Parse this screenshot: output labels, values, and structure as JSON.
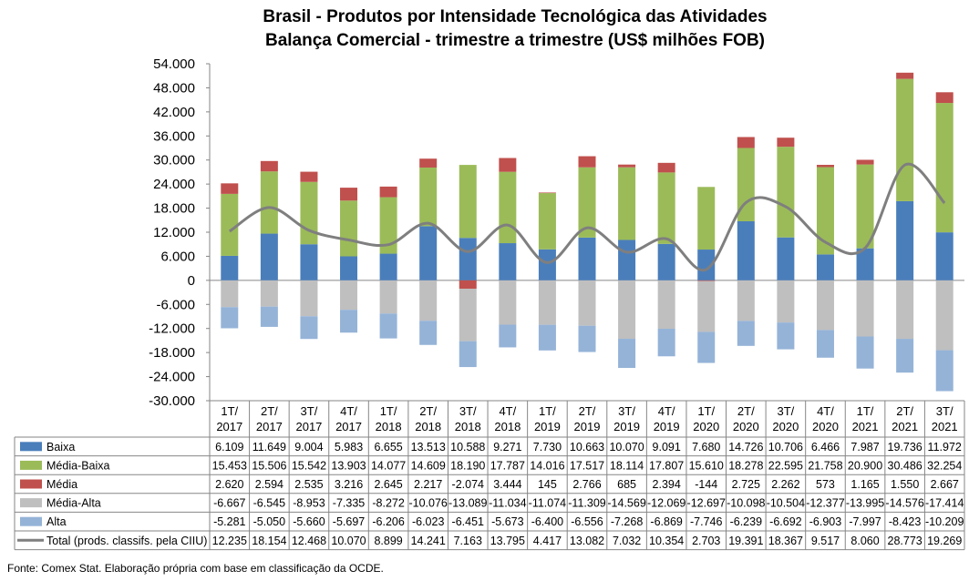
{
  "chart_data": {
    "type": "bar",
    "stacked": true,
    "title": [
      "Brasil - Produtos por Intensidade Tecnológica das Atividades",
      "Balança Comercial - trimestre a trimestre (US$ milhões FOB)"
    ],
    "categories": [
      "1T/\n2017",
      "2T/\n2017",
      "3T/\n2017",
      "4T/\n2017",
      "1T/\n2018",
      "2T/\n2018",
      "3T/\n2018",
      "4T/\n2018",
      "1T/\n2019",
      "2T/\n2019",
      "3T/\n2019",
      "4T/\n2019",
      "1T/\n2020",
      "2T/\n2020",
      "3T/\n2020",
      "4T/\n2020",
      "1T/\n2021",
      "2T/\n2021",
      "3T/\n2021"
    ],
    "ylim": [
      -30000,
      54000
    ],
    "yticks": [
      "54.000",
      "48.000",
      "42.000",
      "36.000",
      "30.000",
      "24.000",
      "18.000",
      "12.000",
      "6.000",
      "0",
      "-6.000",
      "-12.000",
      "-18.000",
      "-24.000",
      "-30.000"
    ],
    "ytick_values": [
      54000,
      48000,
      42000,
      36000,
      30000,
      24000,
      18000,
      12000,
      6000,
      0,
      -6000,
      -12000,
      -18000,
      -24000,
      -30000
    ],
    "series": [
      {
        "name": "Baixa",
        "kind": "bar",
        "color": "#4a7ebb",
        "values": [
          6109,
          11649,
          9004,
          5983,
          6655,
          13513,
          10588,
          9271,
          7730,
          10663,
          10070,
          9091,
          7680,
          14726,
          10706,
          6466,
          7987,
          19736,
          11972
        ],
        "labels": [
          "6.109",
          "11.649",
          "9.004",
          "5.983",
          "6.655",
          "13.513",
          "10.588",
          "9.271",
          "7.730",
          "10.663",
          "10.070",
          "9.091",
          "7.680",
          "14.726",
          "10.706",
          "6.466",
          "7.987",
          "19.736",
          "11.972"
        ]
      },
      {
        "name": "Média-Baixa",
        "kind": "bar",
        "color": "#9bbb59",
        "values": [
          15453,
          15506,
          15542,
          13903,
          14077,
          14609,
          18190,
          17787,
          14016,
          17517,
          18114,
          17807,
          15610,
          18278,
          22595,
          21758,
          20900,
          30486,
          32254
        ],
        "labels": [
          "15.453",
          "15.506",
          "15.542",
          "13.903",
          "14.077",
          "14.609",
          "18.190",
          "17.787",
          "14.016",
          "17.517",
          "18.114",
          "17.807",
          "15.610",
          "18.278",
          "22.595",
          "21.758",
          "20.900",
          "30.486",
          "32.254"
        ]
      },
      {
        "name": "Média",
        "kind": "bar",
        "color": "#c0504d",
        "values": [
          2620,
          2594,
          2535,
          3216,
          2645,
          2217,
          -2074,
          3444,
          145,
          2766,
          685,
          2394,
          -144,
          2725,
          2262,
          573,
          1165,
          1550,
          2667
        ],
        "labels": [
          "2.620",
          "2.594",
          "2.535",
          "3.216",
          "2.645",
          "2.217",
          "-2.074",
          "3.444",
          "145",
          "2.766",
          "685",
          "2.394",
          "-144",
          "2.725",
          "2.262",
          "573",
          "1.165",
          "1.550",
          "2.667"
        ]
      },
      {
        "name": "Média-Alta",
        "kind": "bar",
        "color": "#bfbfbf",
        "values": [
          -6667,
          -6545,
          -8953,
          -7335,
          -8272,
          -10076,
          -13089,
          -11034,
          -11074,
          -11309,
          -14569,
          -12069,
          -12697,
          -10098,
          -10504,
          -12377,
          -13995,
          -14576,
          -17414
        ],
        "labels": [
          "-6.667",
          "-6.545",
          "-8.953",
          "-7.335",
          "-8.272",
          "-10.076",
          "-13.089",
          "-11.034",
          "-11.074",
          "-11.309",
          "-14.569",
          "-12.069",
          "-12.697",
          "-10.098",
          "-10.504",
          "-12.377",
          "-13.995",
          "-14.576",
          "-17.414"
        ]
      },
      {
        "name": "Alta",
        "kind": "bar",
        "color": "#95b3d7",
        "values": [
          -5281,
          -5050,
          -5660,
          -5697,
          -6206,
          -6023,
          -6451,
          -5673,
          -6400,
          -6556,
          -7268,
          -6869,
          -7746,
          -6239,
          -6692,
          -6903,
          -7997,
          -8423,
          -10209
        ],
        "labels": [
          "-5.281",
          "-5.050",
          "-5.660",
          "-5.697",
          "-6.206",
          "-6.023",
          "-6.451",
          "-5.673",
          "-6.400",
          "-6.556",
          "-7.268",
          "-6.869",
          "-7.746",
          "-6.239",
          "-6.692",
          "-6.903",
          "-7.997",
          "-8.423",
          "-10.209"
        ]
      },
      {
        "name": "Total (prods. classifs. pela CIIU)",
        "kind": "line",
        "color": "#7f7f7f",
        "values": [
          12235,
          18154,
          12468,
          10070,
          8899,
          14241,
          7163,
          13795,
          4417,
          13082,
          7032,
          10354,
          2703,
          19391,
          18367,
          9517,
          8060,
          28773,
          19269
        ],
        "labels": [
          "12.235",
          "18.154",
          "12.468",
          "10.070",
          "8.899",
          "14.241",
          "7.163",
          "13.795",
          "4.417",
          "13.082",
          "7.032",
          "10.354",
          "2.703",
          "19.391",
          "18.367",
          "9.517",
          "8.060",
          "28.773",
          "19.269"
        ]
      }
    ]
  },
  "source_note": "Fonte: Comex Stat. Elaboração própria com base em classificação da OCDE."
}
